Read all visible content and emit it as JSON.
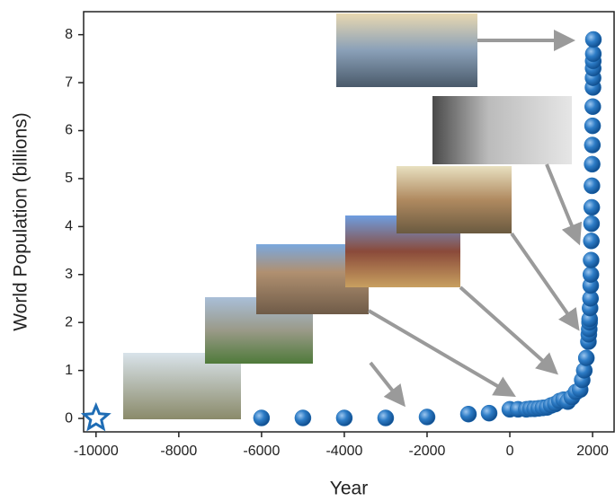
{
  "chart_data": {
    "type": "scatter",
    "x_label": "Year",
    "y_label": "World Population (billions)",
    "x": [
      -10000,
      -6000,
      -5000,
      -4000,
      -3000,
      -2000,
      -1000,
      -500,
      0,
      200,
      400,
      500,
      600,
      700,
      800,
      900,
      1000,
      1100,
      1200,
      1300,
      1400,
      1500,
      1600,
      1700,
      1750,
      1800,
      1850,
      1900,
      1910,
      1920,
      1927,
      1930,
      1940,
      1950,
      1955,
      1960,
      1965,
      1970,
      1975,
      1980,
      1985,
      1990,
      1995,
      2000,
      2005,
      2010,
      2012,
      2014,
      2016,
      2018,
      2020
    ],
    "values": [
      0.004,
      0.01,
      0.01,
      0.01,
      0.01,
      0.03,
      0.09,
      0.11,
      0.19,
      0.19,
      0.19,
      0.2,
      0.2,
      0.21,
      0.22,
      0.23,
      0.27,
      0.3,
      0.36,
      0.39,
      0.35,
      0.44,
      0.55,
      0.6,
      0.8,
      1.0,
      1.26,
      1.6,
      1.75,
      1.86,
      2.0,
      2.07,
      2.3,
      2.5,
      2.77,
      3.0,
      3.3,
      3.7,
      4.06,
      4.4,
      4.85,
      5.3,
      5.7,
      6.1,
      6.5,
      6.9,
      7.1,
      7.3,
      7.45,
      7.6,
      7.9
    ],
    "color": "#1f6db5",
    "first_marker": "star",
    "xlim": [
      -10300,
      2520
    ],
    "ylim": [
      -0.28,
      8.48
    ],
    "xticks": [
      -10000,
      -8000,
      -6000,
      -4000,
      -2000,
      0,
      2000
    ],
    "yticks": [
      0,
      1,
      2,
      3,
      4,
      5,
      6,
      7,
      8
    ]
  }
}
